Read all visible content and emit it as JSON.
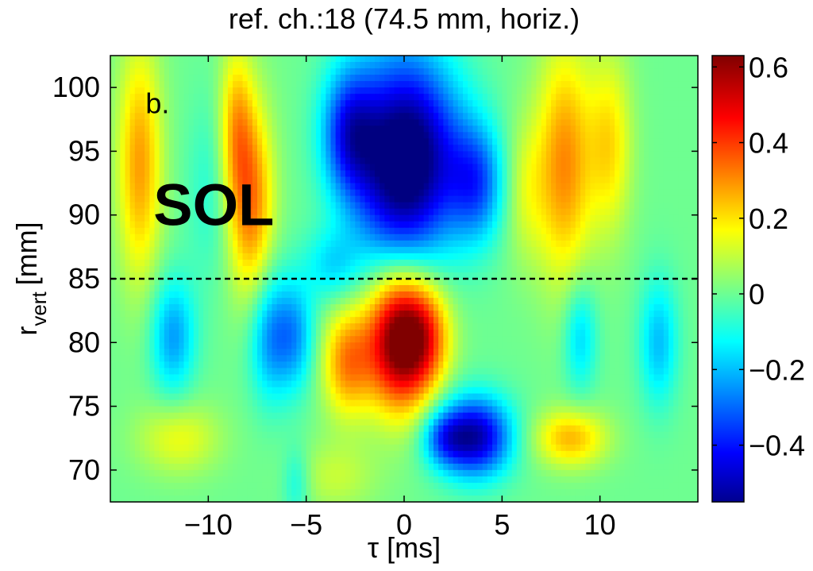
{
  "chart_data": {
    "type": "heatmap",
    "title": "ref. ch.:18 (74.5 mm, horiz.)",
    "xlabel": "τ [ms]",
    "ylabel_main": "r",
    "ylabel_sub": "vert",
    "ylabel_unit": "[mm]",
    "xlim": [
      -15,
      15
    ],
    "ylim": [
      67.5,
      102.5
    ],
    "xticks": [
      -10,
      -5,
      0,
      5,
      10
    ],
    "xtick_labels": [
      "−10",
      "−5",
      "0",
      "5",
      "10"
    ],
    "yticks": [
      70,
      75,
      80,
      85,
      90,
      95,
      100
    ],
    "ytick_labels": [
      "70",
      "75",
      "80",
      "85",
      "90",
      "95",
      "100"
    ],
    "colorbar": {
      "range": [
        -0.55,
        0.63
      ],
      "ticks": [
        -0.4,
        -0.2,
        0,
        0.2,
        0.4,
        0.6
      ],
      "tick_labels": [
        "−0.4",
        "−0.2",
        "0",
        "0.2",
        "0.4",
        "0.6"
      ],
      "colormap": "jet"
    },
    "reference_line": {
      "y": 85,
      "style": "dashed"
    },
    "annotations": [
      {
        "text": "b.",
        "x": -13.2,
        "y": 98,
        "size": "small"
      },
      {
        "text": "SOL",
        "x": -12.8,
        "y": 89.2,
        "size": "large"
      }
    ],
    "features": [
      {
        "x": -0.3,
        "y": 94,
        "sx": 1.7,
        "sy": 6.0,
        "a": -0.55
      },
      {
        "x": -2.8,
        "y": 96.5,
        "sx": 1.0,
        "sy": 3.5,
        "a": -0.35
      },
      {
        "x": 3.7,
        "y": 92.5,
        "sx": 1.0,
        "sy": 3.2,
        "a": -0.3
      },
      {
        "x": 1.5,
        "y": 95,
        "sx": 1.6,
        "sy": 5.0,
        "a": -0.2
      },
      {
        "x": -0.2,
        "y": 80.3,
        "sx": 1.2,
        "sy": 3.8,
        "a": 0.68
      },
      {
        "x": -2.9,
        "y": 78.5,
        "sx": 0.9,
        "sy": 3.0,
        "a": 0.3
      },
      {
        "x": 1.2,
        "y": 80.5,
        "sx": 0.9,
        "sy": 2.8,
        "a": 0.22
      },
      {
        "x": 3.6,
        "y": 72.6,
        "sx": 1.3,
        "sy": 2.2,
        "a": -0.52
      },
      {
        "x": 2.0,
        "y": 72.5,
        "sx": 0.8,
        "sy": 1.5,
        "a": -0.2
      },
      {
        "x": -13.5,
        "y": 94,
        "sx": 0.8,
        "sy": 6.5,
        "a": 0.28
      },
      {
        "x": -8.6,
        "y": 97,
        "sx": 0.6,
        "sy": 4.5,
        "a": 0.22
      },
      {
        "x": -7.8,
        "y": 91,
        "sx": 0.8,
        "sy": 5.5,
        "a": 0.32
      },
      {
        "x": 8.2,
        "y": 94,
        "sx": 1.0,
        "sy": 6.5,
        "a": 0.3
      },
      {
        "x": 10.5,
        "y": 95.5,
        "sx": 0.8,
        "sy": 5.0,
        "a": 0.2
      },
      {
        "x": -11.8,
        "y": 80.5,
        "sx": 0.8,
        "sy": 3.2,
        "a": -0.24
      },
      {
        "x": -6.8,
        "y": 80.5,
        "sx": 0.8,
        "sy": 3.5,
        "a": -0.26
      },
      {
        "x": -5.5,
        "y": 80.5,
        "sx": 0.7,
        "sy": 3.0,
        "a": -0.2
      },
      {
        "x": 9.0,
        "y": 80.5,
        "sx": 0.6,
        "sy": 3.0,
        "a": -0.18
      },
      {
        "x": 13.0,
        "y": 80.0,
        "sx": 0.7,
        "sy": 3.5,
        "a": -0.2
      },
      {
        "x": 8.5,
        "y": 72.5,
        "sx": 1.3,
        "sy": 1.6,
        "a": 0.25
      },
      {
        "x": -11.5,
        "y": 72.5,
        "sx": 1.5,
        "sy": 2.0,
        "a": 0.15
      },
      {
        "x": -3.5,
        "y": 69.5,
        "sx": 1.5,
        "sy": 2.0,
        "a": 0.1
      },
      {
        "x": -5.5,
        "y": 69,
        "sx": 0.5,
        "sy": 2.0,
        "a": -0.12
      },
      {
        "x": -3.7,
        "y": 86,
        "sx": 1.0,
        "sy": 2.0,
        "a": -0.15
      },
      {
        "x": 6.2,
        "y": 92,
        "sx": 0.8,
        "sy": 4.0,
        "a": 0.12
      },
      {
        "x": -10.0,
        "y": 92,
        "sx": 0.8,
        "sy": 5.0,
        "a": -0.08
      }
    ]
  }
}
